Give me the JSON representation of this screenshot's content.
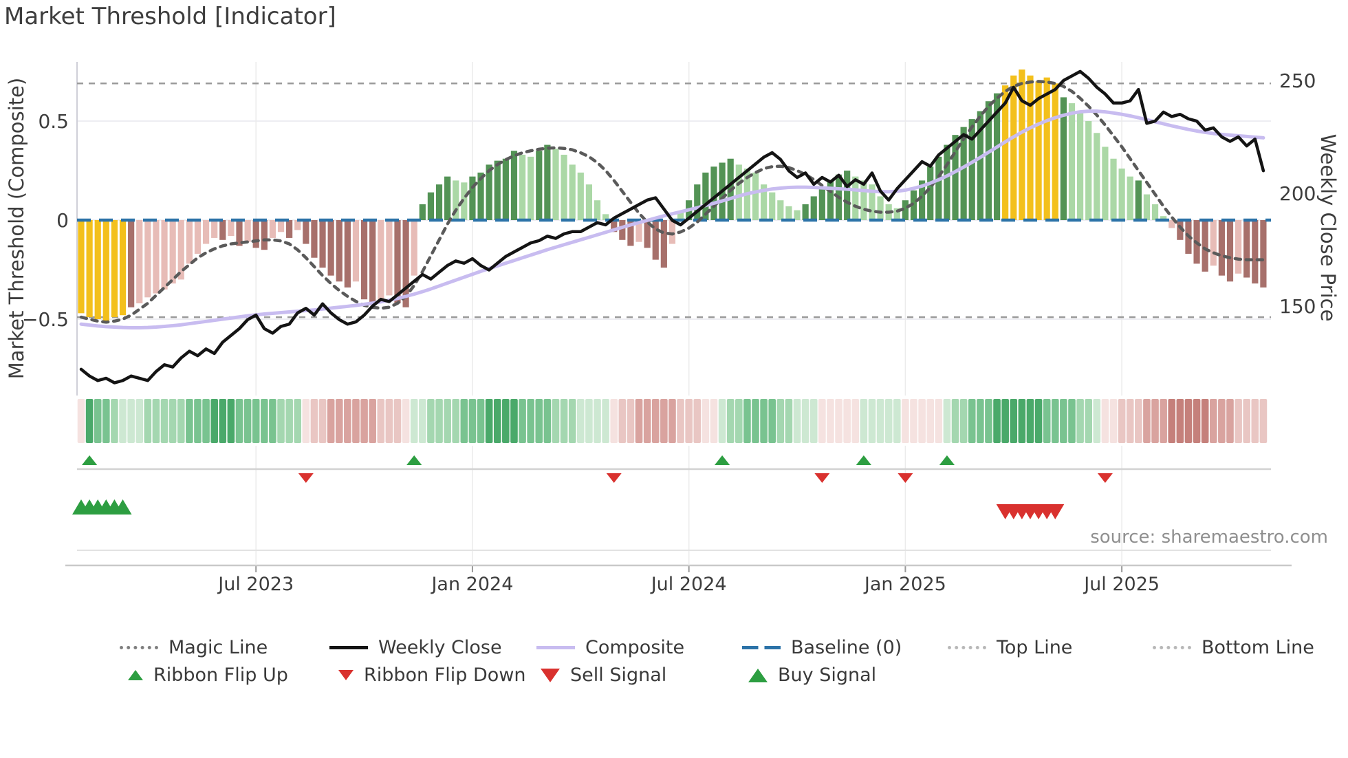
{
  "header": {
    "title": "Market Threshold [Indicator]"
  },
  "source_note": "source: sharemaestro.com",
  "palette": {
    "bar_yellow": "#f3c01c",
    "bar_green_dark": "#539355",
    "bar_green_light": "#abd8a6",
    "bar_red_light": "#e7bcb7",
    "bar_red_dark": "#a7706b",
    "line_close": "#141414",
    "line_composite": "#c8bcf0",
    "line_magic": "#5a5a5a",
    "baseline_blue": "#2c73a8",
    "threshold_line_gray": "#9a9a9a",
    "flip_up_green": "#2d9e41",
    "signal_red": "#d9312e",
    "ribbon": {
      "g1": "#cde8d2",
      "g2": "#a4d7b0",
      "g3": "#79c390",
      "g4": "#4aa96a",
      "r1": "#f5e2e0",
      "r2": "#e9c6c3",
      "r3": "#d9a39f",
      "r4": "#c5807b"
    }
  },
  "legend": {
    "row1": [
      {
        "label": "Magic Line",
        "swatch": "dotted-gray",
        "icon": "dotted-line-icon"
      },
      {
        "label": "Weekly Close",
        "swatch": "solid-black",
        "icon": "solid-line-icon"
      },
      {
        "label": "Composite",
        "swatch": "solid-purple",
        "icon": "solid-line-icon"
      },
      {
        "label": "Baseline (0)",
        "swatch": "dashed-blue",
        "icon": "dashed-line-icon"
      },
      {
        "label": "Top Line",
        "swatch": "dotted-light",
        "icon": "dotted-line-icon"
      },
      {
        "label": "Bottom Line",
        "swatch": "dotted-light",
        "icon": "dotted-line-icon"
      }
    ],
    "row2": [
      {
        "label": "Ribbon Flip Up",
        "swatch": "tri-up-s",
        "icon": "triangle-up-icon"
      },
      {
        "label": "Ribbon Flip Down",
        "swatch": "tri-down-s",
        "icon": "triangle-down-icon"
      },
      {
        "label": "Sell Signal",
        "swatch": "tri-down-b",
        "icon": "triangle-down-icon"
      },
      {
        "label": "Buy Signal",
        "swatch": "tri-up-b",
        "icon": "triangle-up-icon"
      }
    ]
  },
  "chart_data": {
    "type": "combo",
    "title": "Market Threshold [Indicator]",
    "x_unit": "week",
    "x_ticks": [
      {
        "label": "Jul 2023",
        "index": 21
      },
      {
        "label": "Jan 2024",
        "index": 47
      },
      {
        "label": "Jul 2024",
        "index": 73
      },
      {
        "label": "Jan 2025",
        "index": 99
      },
      {
        "label": "Jul 2025",
        "index": 125
      }
    ],
    "left_axis": {
      "label": "Market Threshold (Composite)",
      "ticks": [
        {
          "label": "0.5",
          "value": 0.5
        },
        {
          "label": "0",
          "value": 0
        },
        {
          "label": "−0.5",
          "value": -0.5
        }
      ],
      "range": [
        -0.9,
        0.8
      ]
    },
    "right_axis": {
      "label": "Weekly Close Price",
      "ticks": [
        {
          "label": "250",
          "value": 250
        },
        {
          "label": "200",
          "value": 200
        },
        {
          "label": "150",
          "value": 150
        }
      ],
      "range": [
        110,
        258
      ]
    },
    "baseline": 0,
    "top_line": 0.69,
    "bottom_line": -0.49,
    "threshold_bars": {
      "values": [
        -0.47,
        -0.49,
        -0.5,
        -0.52,
        -0.49,
        -0.48,
        -0.44,
        -0.42,
        -0.39,
        -0.37,
        -0.35,
        -0.32,
        -0.3,
        -0.22,
        -0.17,
        -0.12,
        -0.09,
        -0.1,
        -0.08,
        -0.13,
        -0.11,
        -0.14,
        -0.15,
        -0.09,
        -0.06,
        -0.09,
        -0.05,
        -0.12,
        -0.19,
        -0.24,
        -0.28,
        -0.31,
        -0.34,
        -0.31,
        -0.4,
        -0.43,
        -0.41,
        -0.38,
        -0.42,
        -0.44,
        -0.28,
        0.08,
        0.14,
        0.18,
        0.22,
        0.2,
        0.19,
        0.22,
        0.24,
        0.28,
        0.3,
        0.31,
        0.35,
        0.33,
        0.32,
        0.35,
        0.38,
        0.36,
        0.33,
        0.28,
        0.24,
        0.18,
        0.1,
        0.03,
        -0.06,
        -0.1,
        -0.13,
        -0.11,
        -0.14,
        -0.2,
        -0.24,
        -0.12,
        0.04,
        0.1,
        0.18,
        0.24,
        0.27,
        0.29,
        0.31,
        0.28,
        0.26,
        0.24,
        0.18,
        0.14,
        0.1,
        0.07,
        0.05,
        0.08,
        0.12,
        0.16,
        0.2,
        0.23,
        0.25,
        0.22,
        0.2,
        0.18,
        0.12,
        0.08,
        0.06,
        0.1,
        0.15,
        0.2,
        0.27,
        0.32,
        0.38,
        0.43,
        0.47,
        0.51,
        0.55,
        0.6,
        0.64,
        0.68,
        0.73,
        0.76,
        0.73,
        0.7,
        0.72,
        0.69,
        0.62,
        0.59,
        0.55,
        0.5,
        0.44,
        0.37,
        0.31,
        0.26,
        0.22,
        0.2,
        0.13,
        0.08,
        0.02,
        -0.04,
        -0.1,
        -0.17,
        -0.22,
        -0.26,
        -0.23,
        -0.28,
        -0.31,
        -0.27,
        -0.29,
        -0.32,
        -0.34
      ],
      "colors": [
        "y",
        "y",
        "y",
        "y",
        "y",
        "y",
        "R",
        "r",
        "r",
        "r",
        "r",
        "r",
        "r",
        "r",
        "r",
        "r",
        "r",
        "R",
        "r",
        "R",
        "r",
        "R",
        "R",
        "r",
        "r",
        "R",
        "r",
        "R",
        "R",
        "R",
        "R",
        "R",
        "R",
        "r",
        "R",
        "R",
        "r",
        "r",
        "R",
        "R",
        "r",
        "G",
        "G",
        "G",
        "G",
        "g",
        "g",
        "G",
        "G",
        "G",
        "G",
        "G",
        "G",
        "g",
        "g",
        "G",
        "G",
        "g",
        "g",
        "g",
        "g",
        "g",
        "g",
        "g",
        "R",
        "R",
        "R",
        "r",
        "R",
        "R",
        "R",
        "r",
        "g",
        "G",
        "G",
        "G",
        "G",
        "G",
        "G",
        "g",
        "g",
        "g",
        "g",
        "g",
        "g",
        "g",
        "g",
        "G",
        "G",
        "G",
        "G",
        "G",
        "G",
        "g",
        "g",
        "g",
        "g",
        "g",
        "g",
        "G",
        "G",
        "G",
        "G",
        "G",
        "G",
        "G",
        "G",
        "G",
        "G",
        "G",
        "G",
        "y",
        "y",
        "y",
        "y",
        "y",
        "y",
        "y",
        "G",
        "g",
        "g",
        "g",
        "g",
        "g",
        "g",
        "g",
        "g",
        "G",
        "g",
        "g",
        "g",
        "r",
        "R",
        "R",
        "R",
        "R",
        "r",
        "R",
        "R",
        "r",
        "R",
        "R",
        "R"
      ]
    },
    "weekly_close": [
      122,
      119,
      117,
      118,
      116,
      117,
      119,
      118,
      117,
      121,
      124,
      123,
      127,
      130,
      128,
      131,
      129,
      134,
      137,
      140,
      144,
      146,
      140,
      138,
      141,
      142,
      147,
      149,
      146,
      151,
      147,
      144,
      142,
      143,
      146,
      150,
      153,
      152,
      155,
      158,
      161,
      164,
      162,
      165,
      168,
      170,
      169,
      171,
      168,
      166,
      169,
      172,
      174,
      176,
      178,
      179,
      181,
      180,
      182,
      183,
      183,
      185,
      187,
      186,
      189,
      191,
      193,
      195,
      197,
      198,
      193,
      188,
      186,
      189,
      192,
      195,
      198,
      201,
      204,
      207,
      210,
      213,
      216,
      218,
      215,
      210,
      207,
      209,
      204,
      207,
      205,
      208,
      203,
      206,
      204,
      209,
      201,
      197,
      202,
      206,
      210,
      214,
      212,
      217,
      220,
      223,
      226,
      224,
      228,
      232,
      236,
      240,
      247,
      241,
      239,
      242,
      244,
      246,
      250,
      252,
      254,
      251,
      247,
      244,
      240,
      240,
      241,
      246,
      231,
      232,
      236,
      234,
      235,
      233,
      232,
      228,
      229,
      225,
      223,
      225,
      221,
      224,
      210
    ],
    "composite": [
      142,
      141.6,
      141.2,
      140.9,
      140.7,
      140.5,
      140.4,
      140.4,
      140.5,
      140.7,
      141,
      141.3,
      141.7,
      142.2,
      142.7,
      143.2,
      143.7,
      144.2,
      144.7,
      145.2,
      145.7,
      146.1,
      146.5,
      146.8,
      147.1,
      147.4,
      147.7,
      148,
      148.3,
      148.7,
      149.1,
      149.5,
      149.9,
      150.3,
      150.8,
      151.3,
      151.9,
      152.6,
      153.4,
      154.3,
      155.3,
      156.4,
      157.6,
      158.9,
      160.2,
      161.5,
      162.8,
      164.1,
      165.4,
      166.6,
      167.8,
      169,
      170.2,
      171.4,
      172.6,
      173.8,
      175,
      176.1,
      177.2,
      178.3,
      179.4,
      180.5,
      181.6,
      182.7,
      183.8,
      184.9,
      186,
      187,
      188,
      189,
      190,
      190.9,
      191.8,
      192.7,
      193.6,
      194.6,
      195.6,
      196.6,
      197.7,
      198.8,
      199.8,
      200.6,
      201.3,
      201.9,
      202.3,
      202.6,
      202.7,
      202.7,
      202.6,
      202.4,
      202.2,
      202,
      201.8,
      201.5,
      201.2,
      200.9,
      200.7,
      200.7,
      200.9,
      201.4,
      202.2,
      203.2,
      204.5,
      206,
      207.7,
      209.6,
      211.6,
      213.7,
      215.9,
      218.2,
      220.5,
      222.8,
      225,
      227.1,
      229,
      230.7,
      232.2,
      233.5,
      234.6,
      235.5,
      236.1,
      236.4,
      236.4,
      236.1,
      235.6,
      235,
      234.3,
      233.5,
      232.6,
      231.7,
      230.8,
      229.9,
      229.1,
      228.3,
      227.6,
      227,
      226.5,
      226.1,
      225.8,
      225.5,
      225.2,
      224.9,
      224.6
    ],
    "magic_line": [
      -0.49,
      -0.5,
      -0.51,
      -0.515,
      -0.51,
      -0.5,
      -0.48,
      -0.45,
      -0.42,
      -0.38,
      -0.34,
      -0.3,
      -0.26,
      -0.225,
      -0.19,
      -0.165,
      -0.145,
      -0.13,
      -0.12,
      -0.115,
      -0.11,
      -0.105,
      -0.1,
      -0.1,
      -0.105,
      -0.12,
      -0.15,
      -0.19,
      -0.235,
      -0.28,
      -0.32,
      -0.355,
      -0.385,
      -0.41,
      -0.43,
      -0.44,
      -0.445,
      -0.44,
      -0.42,
      -0.385,
      -0.33,
      -0.26,
      -0.18,
      -0.1,
      -0.02,
      0.05,
      0.11,
      0.165,
      0.21,
      0.25,
      0.28,
      0.305,
      0.325,
      0.34,
      0.35,
      0.358,
      0.363,
      0.365,
      0.362,
      0.355,
      0.34,
      0.32,
      0.29,
      0.25,
      0.2,
      0.145,
      0.09,
      0.035,
      -0.01,
      -0.045,
      -0.065,
      -0.07,
      -0.06,
      -0.04,
      -0.01,
      0.03,
      0.07,
      0.11,
      0.15,
      0.185,
      0.215,
      0.24,
      0.26,
      0.27,
      0.272,
      0.265,
      0.25,
      0.23,
      0.205,
      0.175,
      0.145,
      0.115,
      0.09,
      0.07,
      0.055,
      0.045,
      0.04,
      0.04,
      0.045,
      0.06,
      0.085,
      0.12,
      0.165,
      0.22,
      0.28,
      0.345,
      0.41,
      0.47,
      0.525,
      0.575,
      0.615,
      0.65,
      0.675,
      0.69,
      0.697,
      0.7,
      0.697,
      0.69,
      0.675,
      0.65,
      0.615,
      0.575,
      0.53,
      0.48,
      0.425,
      0.37,
      0.31,
      0.25,
      0.19,
      0.13,
      0.07,
      0.015,
      -0.035,
      -0.08,
      -0.115,
      -0.145,
      -0.165,
      -0.18,
      -0.19,
      -0.197,
      -0.2,
      -0.2,
      -0.2
    ],
    "ribbon": [
      "r1",
      "g4",
      "g3",
      "g3",
      "g2",
      "g1",
      "g1",
      "g1",
      "g2",
      "g2",
      "g2",
      "g2",
      "g2",
      "g3",
      "g3",
      "g3",
      "g4",
      "g4",
      "g4",
      "g3",
      "g3",
      "g3",
      "g3",
      "g3",
      "g2",
      "g2",
      "g2",
      "r1",
      "r2",
      "r2",
      "r3",
      "r3",
      "r3",
      "r3",
      "r3",
      "r3",
      "r2",
      "r2",
      "r2",
      "r1",
      "g1",
      "g1",
      "g2",
      "g2",
      "g2",
      "g2",
      "g3",
      "g3",
      "g3",
      "g4",
      "g4",
      "g4",
      "g4",
      "g3",
      "g3",
      "g3",
      "g3",
      "g2",
      "g2",
      "g2",
      "g1",
      "g1",
      "g1",
      "g1",
      "r1",
      "r2",
      "r2",
      "r3",
      "r3",
      "r3",
      "r3",
      "r3",
      "r2",
      "r2",
      "r2",
      "r1",
      "r1",
      "g1",
      "g2",
      "g2",
      "g3",
      "g3",
      "g3",
      "g3",
      "g2",
      "g2",
      "g1",
      "g1",
      "g1",
      "r1",
      "r1",
      "r1",
      "r1",
      "r1",
      "g1",
      "g1",
      "g1",
      "g1",
      "g1",
      "r1",
      "r1",
      "r1",
      "r1",
      "r1",
      "g1",
      "g2",
      "g2",
      "g3",
      "g3",
      "g3",
      "g4",
      "g4",
      "g4",
      "g4",
      "g4",
      "g4",
      "g3",
      "g3",
      "g3",
      "g3",
      "g2",
      "g2",
      "g1",
      "r1",
      "r1",
      "r2",
      "r2",
      "r2",
      "r3",
      "r3",
      "r3",
      "r4",
      "r4",
      "r4",
      "r4",
      "r4",
      "r3",
      "r3",
      "r3",
      "r2",
      "r2",
      "r2",
      "r2"
    ],
    "ribbon_flip_up": [
      1,
      40,
      77,
      94,
      104
    ],
    "ribbon_flip_down": [
      27,
      64,
      89,
      99,
      123
    ],
    "buy_signals": [
      0,
      1,
      2,
      3,
      4,
      5
    ],
    "sell_signals": [
      111,
      112,
      113,
      114,
      115,
      116,
      117
    ]
  }
}
